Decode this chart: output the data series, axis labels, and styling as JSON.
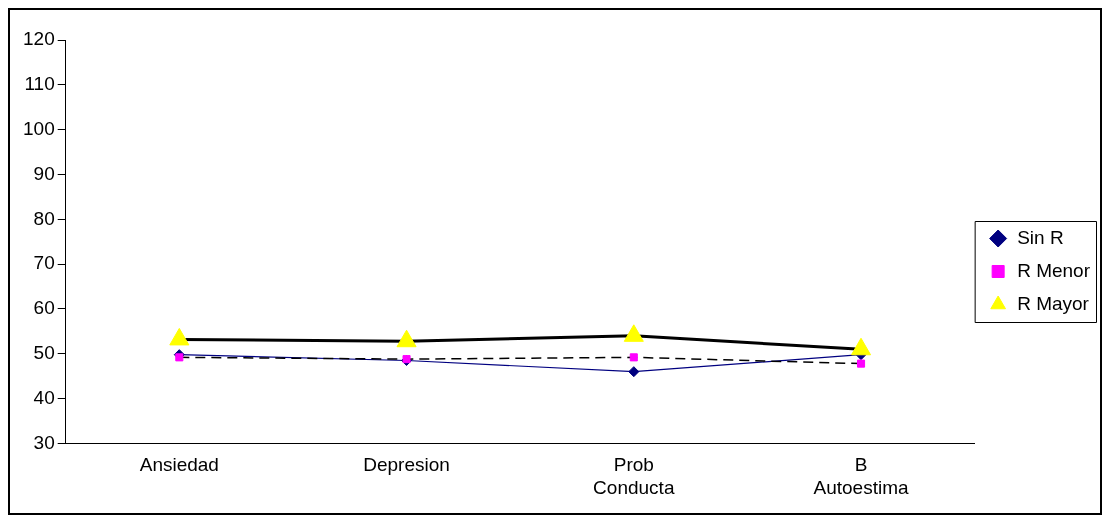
{
  "chart_data": {
    "type": "line",
    "categories": [
      "Ansiedad",
      "Depresion",
      "Prob Conducta",
      "B Autoestima"
    ],
    "series": [
      {
        "name": "Sin R",
        "color": "#000080",
        "colors": [
          "#000080",
          "#000080",
          "#000080",
          "#000080"
        ],
        "marker": "diamond",
        "line_style": "solid",
        "values": [
          49.8,
          48.5,
          46,
          49.8
        ]
      },
      {
        "name": "R Menor",
        "color": "#000000",
        "colors": [
          "#ff00ff",
          "#ff00ff",
          "#ff00ff",
          "#ff00ff"
        ],
        "marker": "square",
        "line_style": "dashed",
        "values": [
          49.2,
          48.8,
          49.2,
          47.8
        ]
      },
      {
        "name": "R Mayor",
        "color": "#000000",
        "colors": [
          "#ffff00",
          "#ffff00",
          "#ffff00",
          "#ffff00"
        ],
        "marker": "triangle",
        "line_style": "solid",
        "values": [
          53.2,
          52.8,
          54,
          51
        ]
      }
    ],
    "ylim": [
      30,
      120
    ],
    "yticks": [
      30,
      40,
      50,
      60,
      70,
      80,
      90,
      100,
      110,
      120
    ],
    "grid": false,
    "legend": "right"
  }
}
